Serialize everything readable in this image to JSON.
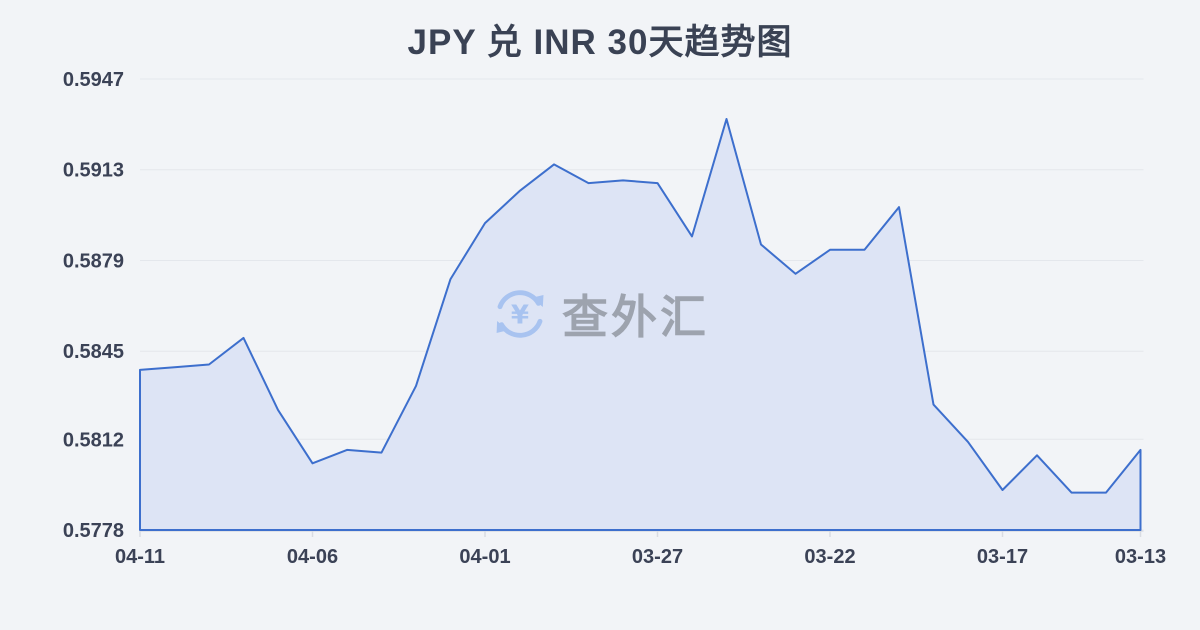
{
  "page": {
    "background": "#f2f4f7"
  },
  "header": {
    "title": "JPY 兑 INR 30天趋势图",
    "title_color": "#3a4254"
  },
  "watermark": {
    "icon": "currency-exchange-icon",
    "icon_symbol": "¥",
    "text": "查外汇",
    "icon_color": "#a6c2f0",
    "text_color": "#9aa0ab"
  },
  "chart_data": {
    "type": "area",
    "title": "JPY 兑 INR 30天趋势图",
    "categories": [
      "04-11",
      "04-10",
      "04-09",
      "04-08",
      "04-07",
      "04-06",
      "04-05",
      "04-04",
      "04-03",
      "04-02",
      "04-01",
      "03-31",
      "03-30",
      "03-29",
      "03-28",
      "03-27",
      "03-26",
      "03-25",
      "03-24",
      "03-23",
      "03-22",
      "03-21",
      "03-20",
      "03-19",
      "03-18",
      "03-17",
      "03-16",
      "03-15",
      "03-14",
      "03-13"
    ],
    "values": [
      0.5838,
      0.5839,
      0.584,
      0.585,
      0.5823,
      0.5803,
      0.5808,
      0.5807,
      0.5832,
      0.5872,
      0.5893,
      0.5905,
      0.5915,
      0.5908,
      0.5909,
      0.5908,
      0.5888,
      0.5932,
      0.5885,
      0.5874,
      0.5883,
      0.5883,
      0.5899,
      0.5825,
      0.5811,
      0.5793,
      0.5806,
      0.5792,
      0.5792,
      0.5808
    ],
    "x_axis_ticks": [
      "04-11",
      "04-06",
      "04-01",
      "03-27",
      "03-22",
      "03-17",
      "03-13"
    ],
    "x_tick_indices": [
      0,
      5,
      10,
      15,
      20,
      25,
      29
    ],
    "y_axis_ticks": [
      0.5947,
      0.5913,
      0.5879,
      0.5845,
      0.5812,
      0.5778
    ],
    "ylim": [
      0.5778,
      0.5947
    ],
    "xlabel": "",
    "ylabel": "",
    "grid": true,
    "legend": false,
    "x_axis_reversed_time": true,
    "line_color": "#3d6fcd",
    "fill_color": "#dde4f5",
    "grid_color": "#e4e7ec",
    "axis_color": "#d9dce2",
    "label_color": "#3b4256"
  }
}
